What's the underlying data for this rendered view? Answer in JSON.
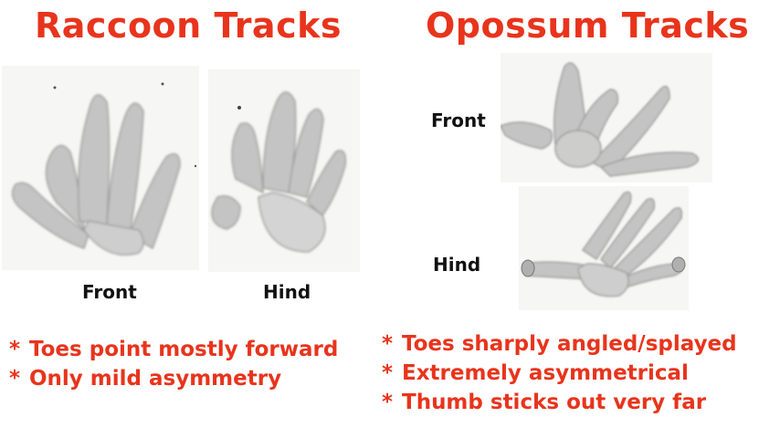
{
  "raccoon": {
    "title": "Raccoon Tracks",
    "front_label": "Front",
    "hind_label": "Hind",
    "bullets": [
      "Toes point mostly forward",
      "Only mild asymmetry"
    ]
  },
  "opossum": {
    "title": "Opossum Tracks",
    "front_label": "Front",
    "hind_label": "Hind",
    "bullets": [
      "Toes sharply angled/splayed",
      "Extremely asymmetrical",
      "Thumb sticks out very far"
    ]
  },
  "bullet_marker": "*",
  "colors": {
    "title": "#e8341c",
    "bullet": "#e8341c",
    "label": "#111111",
    "sketch": "#9a9a9a"
  }
}
